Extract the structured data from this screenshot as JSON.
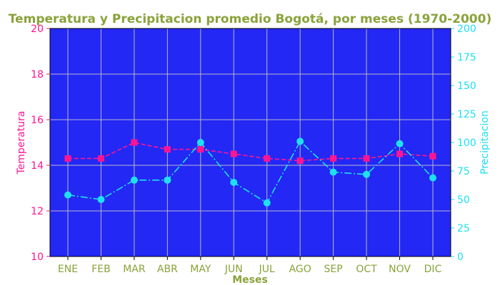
{
  "chart_data": {
    "type": "line",
    "title": "Temperatura y Precipitacion promedio Bogotá, por meses (1970-2000)",
    "xlabel": "Meses",
    "ylabel_left": "Temperatura",
    "ylabel_right": "Precipitacion",
    "categories": [
      "ENE",
      "FEB",
      "MAR",
      "ABR",
      "MAY",
      "JUN",
      "JUL",
      "AGO",
      "SEP",
      "OCT",
      "NOV",
      "DIC"
    ],
    "ylim_left": [
      10,
      20
    ],
    "ylim_right": [
      0,
      200
    ],
    "yticks_left": [
      10,
      12,
      14,
      16,
      18,
      20
    ],
    "yticks_right": [
      0,
      25,
      50,
      75,
      100,
      125,
      150,
      175,
      200
    ],
    "grid": true,
    "series": [
      {
        "axis": "left",
        "values": [
          14.3,
          14.3,
          15.0,
          14.7,
          14.7,
          14.5,
          14.3,
          14.2,
          14.3,
          14.3,
          14.5,
          14.4
        ],
        "color": "#ff1493",
        "line_style": "dashed",
        "marker": "square"
      },
      {
        "axis": "right",
        "values": [
          54,
          50,
          67,
          67,
          100,
          65,
          47,
          101,
          74,
          72,
          99,
          69
        ],
        "color": "#1ee0f0",
        "line_style": "dashdot",
        "marker": "circle"
      }
    ],
    "colors": {
      "plot_background": "#2328f5",
      "title": "#8aa23a",
      "x_axis_text": "#8aa23a",
      "left_axis_text": "#ff1493",
      "right_axis_text": "#1ee0f0",
      "grid": "#b8b8c8"
    }
  }
}
